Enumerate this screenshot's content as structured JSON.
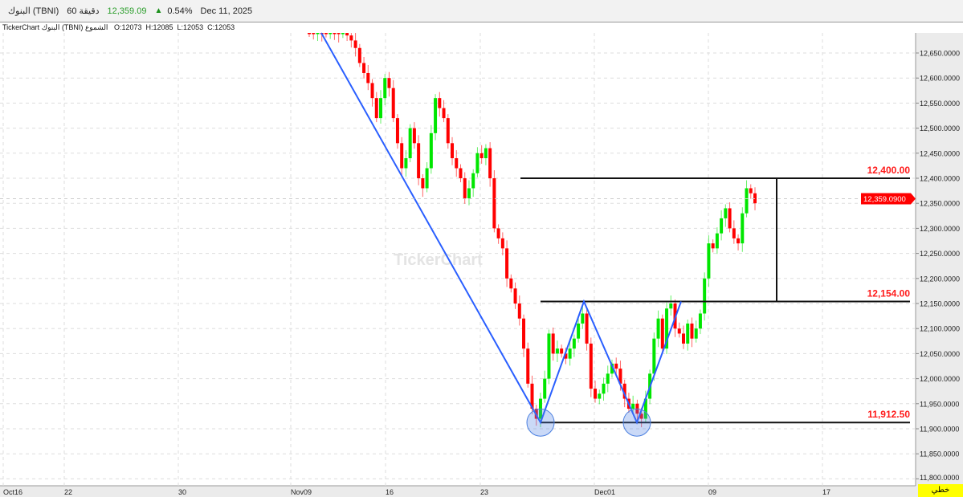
{
  "header": {
    "symbol": "البنوك (TBNI)",
    "interval": "60 دقيقة",
    "price": "12,359.09",
    "change_icon": "triangle-up",
    "change_pct": "0.54%",
    "date": "Dec 11, 2025"
  },
  "info_line": {
    "title": "TickerChart البنوك (TBNI) الشموع",
    "open": "O:12073",
    "high": "H:12085",
    "low": "L:12053",
    "close": "C:12053"
  },
  "watermark": "TickerChart",
  "scale_button": "خطي",
  "colors": {
    "up": "#00e600",
    "down": "#ff0000",
    "pattern": "#2a5fff",
    "level_label": "#ff1a1a",
    "axis_bg": "#ebebeb"
  },
  "chart_data": {
    "type": "candlestick",
    "ylim": [
      11800,
      12690
    ],
    "y_ticks": [
      "12,650.0000",
      "12,600.0000",
      "12,550.0000",
      "12,500.0000",
      "12,450.0000",
      "12,400.0000",
      "12,350.0000",
      "12,300.0000",
      "12,250.0000",
      "12,200.0000",
      "12,150.0000",
      "12,100.0000",
      "12,050.0000",
      "12,000.0000",
      "11,950.0000",
      "11,900.0000",
      "11,850.0000",
      "11,800.0000"
    ],
    "x_ticks": [
      "Oct16",
      "22",
      "30",
      "Nov09",
      "16",
      "23",
      "Dec01",
      "09",
      "17"
    ],
    "grid": true,
    "closes": [
      12690,
      12688,
      12692,
      12690,
      12689,
      12691,
      12690,
      12688,
      12690,
      12685,
      12675,
      12660,
      12630,
      12610,
      12590,
      12560,
      12520,
      12560,
      12600,
      12580,
      12520,
      12470,
      12420,
      12440,
      12500,
      12470,
      12400,
      12380,
      12420,
      12490,
      12560,
      12540,
      12520,
      12470,
      12440,
      12420,
      12400,
      12360,
      12380,
      12410,
      12450,
      12440,
      12460,
      12400,
      12300,
      12280,
      12260,
      12200,
      12180,
      12150,
      12120,
      12060,
      11990,
      11940,
      11920,
      11960,
      12000,
      12090,
      12050,
      12060,
      12050,
      12040,
      12060,
      12080,
      12110,
      12130,
      12070,
      11980,
      11960,
      11970,
      11990,
      12010,
      12030,
      12020,
      11990,
      11960,
      11940,
      11950,
      11930,
      11920,
      11960,
      12010,
      12080,
      12120,
      12060,
      12140,
      12150,
      12100,
      12090,
      12070,
      12110,
      12080,
      12100,
      12130,
      12200,
      12270,
      12260,
      12290,
      12320,
      12340,
      12300,
      12280,
      12270,
      12330,
      12380,
      12370,
      12350
    ],
    "last_price_label": "12,359.0900",
    "levels": [
      {
        "value": 12400,
        "label": "12,400.00"
      },
      {
        "value": 12154,
        "label": "12,154.00"
      },
      {
        "value": 11912.5,
        "label": "11,912.50"
      }
    ],
    "pattern_points": [
      12690,
      11912.5,
      12154,
      11912.5,
      12154
    ]
  }
}
